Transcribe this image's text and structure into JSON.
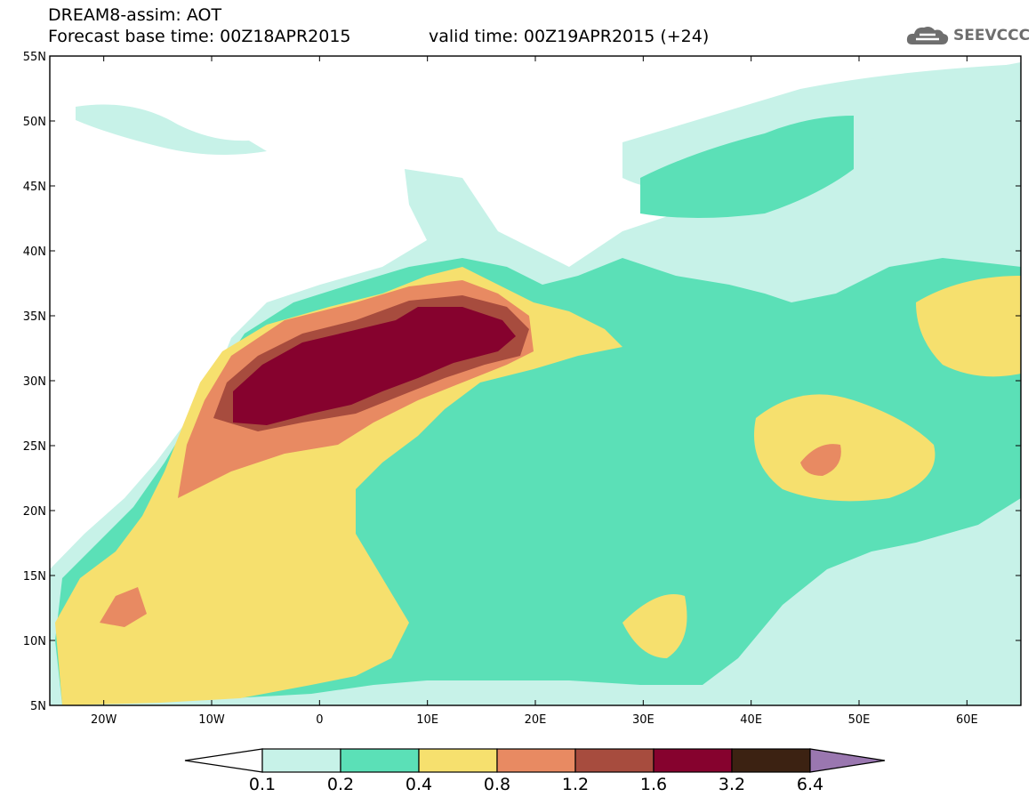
{
  "header": {
    "line1": "DREAM8-assim: AOT",
    "line2_left": "Forecast base time: 00Z18APR2015",
    "line2_right": "valid time: 00Z19APR2015 (+24)",
    "logo_text": "SEEVCCC",
    "logo_icon": "cloud-icon"
  },
  "map": {
    "lon_range": [
      -25,
      65
    ],
    "lat_range": [
      5,
      55
    ],
    "lon_ticks": [
      {
        "value": -20,
        "label": "20W"
      },
      {
        "value": -10,
        "label": "10W"
      },
      {
        "value": 0,
        "label": "0"
      },
      {
        "value": 10,
        "label": "10E"
      },
      {
        "value": 20,
        "label": "20E"
      },
      {
        "value": 30,
        "label": "30E"
      },
      {
        "value": 40,
        "label": "40E"
      },
      {
        "value": 50,
        "label": "50E"
      },
      {
        "value": 60,
        "label": "60E"
      }
    ],
    "lat_ticks": [
      {
        "value": 5,
        "label": "5N"
      },
      {
        "value": 10,
        "label": "10N"
      },
      {
        "value": 15,
        "label": "15N"
      },
      {
        "value": 20,
        "label": "20N"
      },
      {
        "value": 25,
        "label": "25N"
      },
      {
        "value": 30,
        "label": "30N"
      },
      {
        "value": 35,
        "label": "35N"
      },
      {
        "value": 40,
        "label": "40N"
      },
      {
        "value": 45,
        "label": "45N"
      },
      {
        "value": 50,
        "label": "50N"
      },
      {
        "value": 55,
        "label": "55N"
      }
    ]
  },
  "legend": {
    "levels": [
      "0.1",
      "0.2",
      "0.4",
      "0.8",
      "1.2",
      "1.6",
      "3.2",
      "6.4"
    ],
    "colors": [
      "#ffffff",
      "#c7f2e8",
      "#5be0b7",
      "#f6e06e",
      "#e88a62",
      "#a74c3e",
      "#86022e",
      "#3c2212",
      "#9a77b0"
    ]
  }
}
